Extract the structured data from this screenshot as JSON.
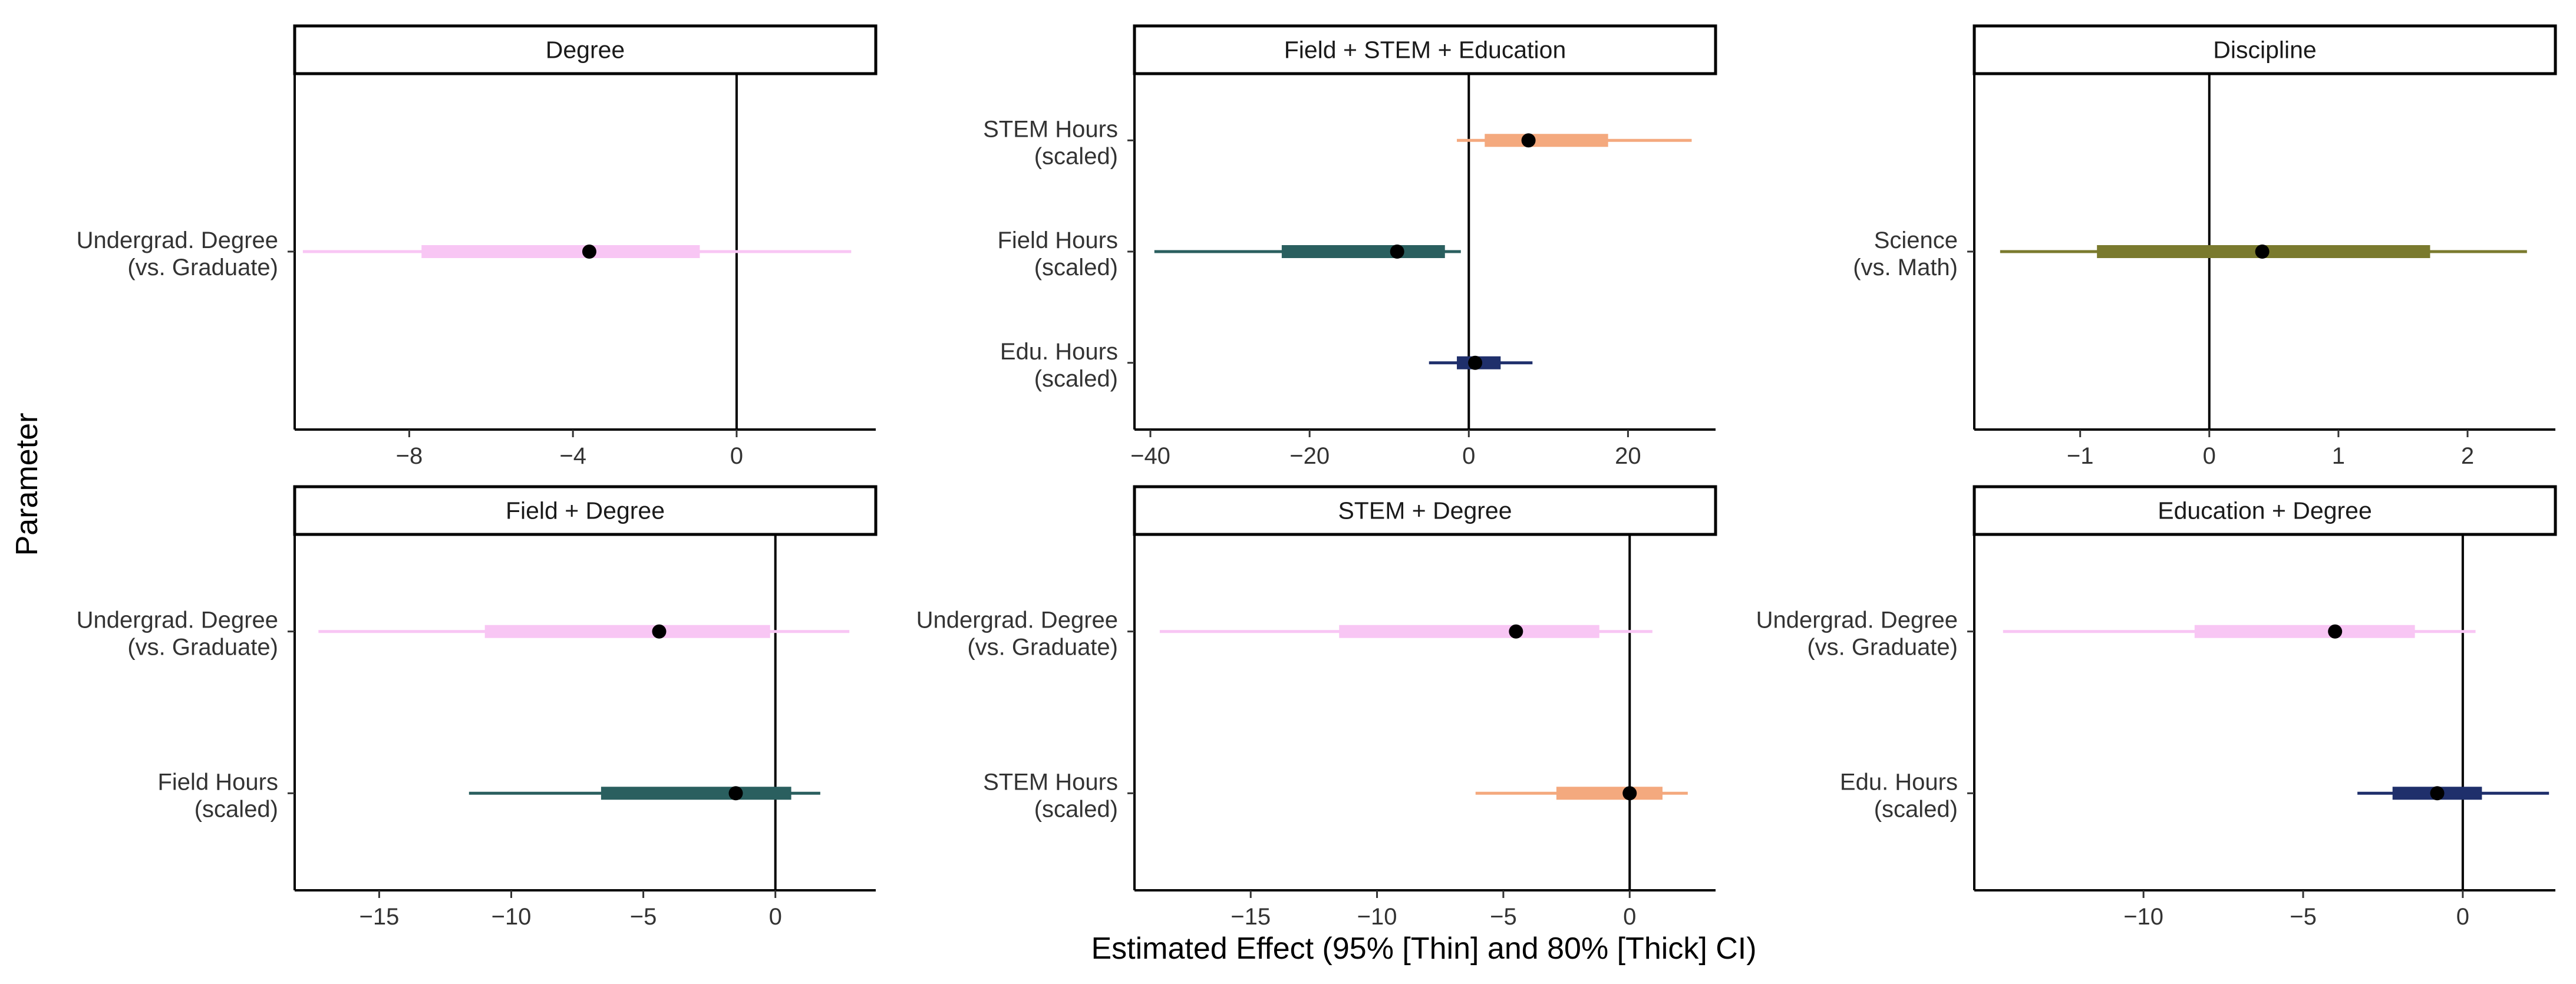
{
  "figure": {
    "xlabel": "Estimated Effect (95% [Thin] and 80% [Thick] CI)",
    "ylabel": "Parameter"
  },
  "colors": {
    "degree": "#f8c6f4",
    "field": "#2a5f5f",
    "stem": "#f4a97e",
    "edu": "#1f2f6b",
    "discipline": "#7a7a2e",
    "point": "#000000"
  },
  "chart_data": [
    {
      "type": "forest",
      "title": "Degree",
      "xlim": [
        -10.8,
        3.4
      ],
      "xticks": [
        -8,
        -4,
        0
      ],
      "xtick_labels": [
        "−8",
        "−4",
        "0"
      ],
      "categories": [
        "Undergrad. Degree\n(vs. Graduate)"
      ],
      "estimates": [
        {
          "param": "Undergrad. Degree\n(vs. Graduate)",
          "color": "degree",
          "estimate": -3.6,
          "ci95": [
            -10.6,
            2.8
          ],
          "ci80": [
            -7.7,
            -0.9
          ]
        }
      ]
    },
    {
      "type": "forest",
      "title": "Field + STEM + Education",
      "xlim": [
        -42,
        31
      ],
      "xticks": [
        -40,
        -20,
        0,
        20
      ],
      "xtick_labels": [
        "−40",
        "−20",
        "0",
        "20"
      ],
      "categories": [
        "STEM Hours\n(scaled)",
        "Field Hours\n(scaled)",
        "Edu. Hours\n(scaled)"
      ],
      "estimates": [
        {
          "param": "STEM Hours\n(scaled)",
          "color": "stem",
          "estimate": 7.5,
          "ci95": [
            -1.5,
            28
          ],
          "ci80": [
            2,
            17.5
          ]
        },
        {
          "param": "Field Hours\n(scaled)",
          "color": "field",
          "estimate": -9,
          "ci95": [
            -39.5,
            -1
          ],
          "ci80": [
            -23.5,
            -3
          ]
        },
        {
          "param": "Edu. Hours\n(scaled)",
          "color": "edu",
          "estimate": 0.8,
          "ci95": [
            -5,
            8
          ],
          "ci80": [
            -1.5,
            4
          ]
        }
      ]
    },
    {
      "type": "forest",
      "title": "Discipline",
      "xlim": [
        -1.82,
        2.68
      ],
      "xticks": [
        -1,
        0,
        1,
        2
      ],
      "xtick_labels": [
        "−1",
        "0",
        "1",
        "2"
      ],
      "categories": [
        "Science\n(vs. Math)"
      ],
      "estimates": [
        {
          "param": "Science\n(vs. Math)",
          "color": "discipline",
          "estimate": 0.41,
          "ci95": [
            -1.62,
            2.46
          ],
          "ci80": [
            -0.87,
            1.71
          ]
        }
      ]
    },
    {
      "type": "forest",
      "title": "Field + Degree",
      "xlim": [
        -18.2,
        3.8
      ],
      "xticks": [
        -15,
        -10,
        -5,
        0
      ],
      "xtick_labels": [
        "−15",
        "−10",
        "−5",
        "0"
      ],
      "categories": [
        "Undergrad. Degree\n(vs. Graduate)",
        "Field Hours\n(scaled)"
      ],
      "estimates": [
        {
          "param": "Undergrad. Degree\n(vs. Graduate)",
          "color": "degree",
          "estimate": -4.4,
          "ci95": [
            -17.3,
            2.8
          ],
          "ci80": [
            -11,
            -0.2
          ]
        },
        {
          "param": "Field Hours\n(scaled)",
          "color": "field",
          "estimate": -1.5,
          "ci95": [
            -11.6,
            1.7
          ],
          "ci80": [
            -6.6,
            0.6
          ]
        }
      ]
    },
    {
      "type": "forest",
      "title": "STEM + Degree",
      "xlim": [
        -19.6,
        3.4
      ],
      "xticks": [
        -15,
        -10,
        -5,
        0
      ],
      "xtick_labels": [
        "−15",
        "−10",
        "−5",
        "0"
      ],
      "categories": [
        "Undergrad. Degree\n(vs. Graduate)",
        "STEM Hours\n(scaled)"
      ],
      "estimates": [
        {
          "param": "Undergrad. Degree\n(vs. Graduate)",
          "color": "degree",
          "estimate": -4.5,
          "ci95": [
            -18.6,
            0.9
          ],
          "ci80": [
            -11.5,
            -1.2
          ]
        },
        {
          "param": "STEM Hours\n(scaled)",
          "color": "stem",
          "estimate": 0,
          "ci95": [
            -6.1,
            2.3
          ],
          "ci80": [
            -2.9,
            1.3
          ]
        }
      ]
    },
    {
      "type": "forest",
      "title": "Education + Degree",
      "xlim": [
        -15.3,
        2.9
      ],
      "xticks": [
        -10,
        -5,
        0
      ],
      "xtick_labels": [
        "−10",
        "−5",
        "0"
      ],
      "categories": [
        "Undergrad. Degree\n(vs. Graduate)",
        "Edu. Hours\n(scaled)"
      ],
      "estimates": [
        {
          "param": "Undergrad. Degree\n(vs. Graduate)",
          "color": "degree",
          "estimate": -4,
          "ci95": [
            -14.4,
            0.4
          ],
          "ci80": [
            -8.4,
            -1.5
          ]
        },
        {
          "param": "Edu. Hours\n(scaled)",
          "color": "edu",
          "estimate": -0.8,
          "ci95": [
            -3.3,
            2.7
          ],
          "ci80": [
            -2.2,
            0.6
          ]
        }
      ]
    }
  ]
}
